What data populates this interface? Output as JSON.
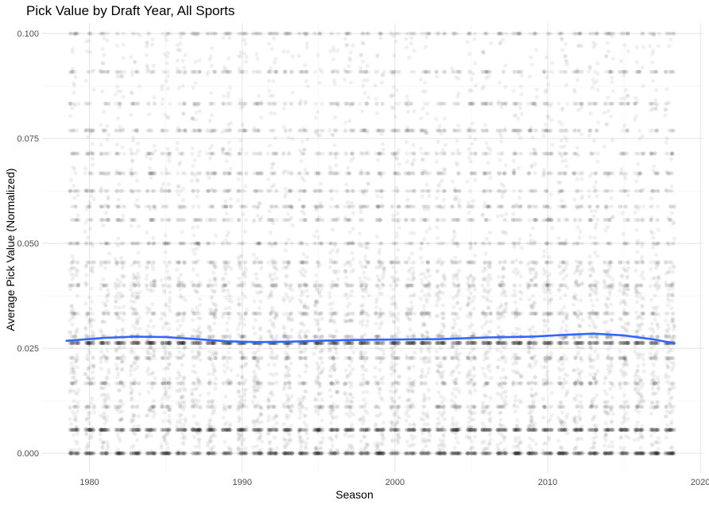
{
  "chart_data": {
    "type": "scatter",
    "title": "Pick Value by Draft Year, All Sports",
    "xlabel": "Season",
    "ylabel": "Average Pick Value (Normalized)",
    "xlim": [
      1976.9,
      2020.2
    ],
    "ylim": [
      -0.0045,
      0.1025
    ],
    "x_ticks": [
      1980,
      1990,
      2000,
      2010,
      2020
    ],
    "x_tick_labels": [
      "1980",
      "1990",
      "2000",
      "2010",
      "2020"
    ],
    "y_ticks": [
      0.0,
      0.025,
      0.05,
      0.075,
      0.1
    ],
    "y_tick_labels": [
      "0.000",
      "0.025",
      "0.050",
      "0.075",
      "0.100"
    ],
    "grid": true,
    "background": "#ffffff",
    "point_color": "#000000",
    "point_alpha": 0.06,
    "seasons": [
      1979,
      2018
    ],
    "common_levels": [
      0.0,
      0.0056,
      0.0111,
      0.0167,
      0.0227,
      0.0263,
      0.0278,
      0.0333,
      0.04,
      0.0455,
      0.05,
      0.0556,
      0.0588,
      0.0625,
      0.0667,
      0.0714,
      0.0769,
      0.0833,
      0.0909,
      0.1
    ],
    "trend_line": {
      "color": "#3366ff",
      "points": [
        {
          "x": 1978.5,
          "y": 0.0268
        },
        {
          "x": 1981,
          "y": 0.0275
        },
        {
          "x": 1983,
          "y": 0.0278
        },
        {
          "x": 1985,
          "y": 0.0277
        },
        {
          "x": 1987,
          "y": 0.0272
        },
        {
          "x": 1989,
          "y": 0.0267
        },
        {
          "x": 1991,
          "y": 0.0265
        },
        {
          "x": 1993,
          "y": 0.0266
        },
        {
          "x": 1995,
          "y": 0.0268
        },
        {
          "x": 1997,
          "y": 0.027
        },
        {
          "x": 2000,
          "y": 0.0271
        },
        {
          "x": 2003,
          "y": 0.0272
        },
        {
          "x": 2006,
          "y": 0.0276
        },
        {
          "x": 2009,
          "y": 0.0278
        },
        {
          "x": 2011,
          "y": 0.0282
        },
        {
          "x": 2013,
          "y": 0.0285
        },
        {
          "x": 2015,
          "y": 0.0281
        },
        {
          "x": 2017,
          "y": 0.0271
        },
        {
          "x": 2018.3,
          "y": 0.0262
        }
      ]
    }
  }
}
